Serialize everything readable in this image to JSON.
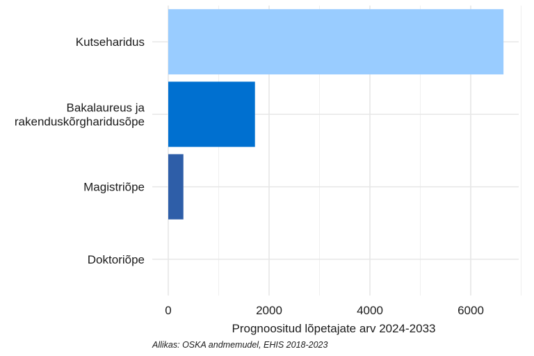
{
  "chart_data": {
    "type": "bar",
    "orientation": "horizontal",
    "categories": [
      "Kutseharidus",
      "Bakalaureus ja\nrakenduskõrgharidusõpe",
      "Magistriõpe",
      "Doktoriõpe"
    ],
    "values": [
      6650,
      1720,
      300,
      0
    ],
    "colors": [
      "#99ccff",
      "#0070d0",
      "#2e5ea8",
      "#1f3f7a"
    ],
    "xlabel": "Prognoositud lõpetajate arv 2024-2033",
    "xticks": [
      0,
      2000,
      4000,
      6000
    ],
    "xlim": [
      0,
      7100
    ],
    "grid": true,
    "caption": "Allikas: OSKA andmemudel, EHIS 2018-2023"
  }
}
